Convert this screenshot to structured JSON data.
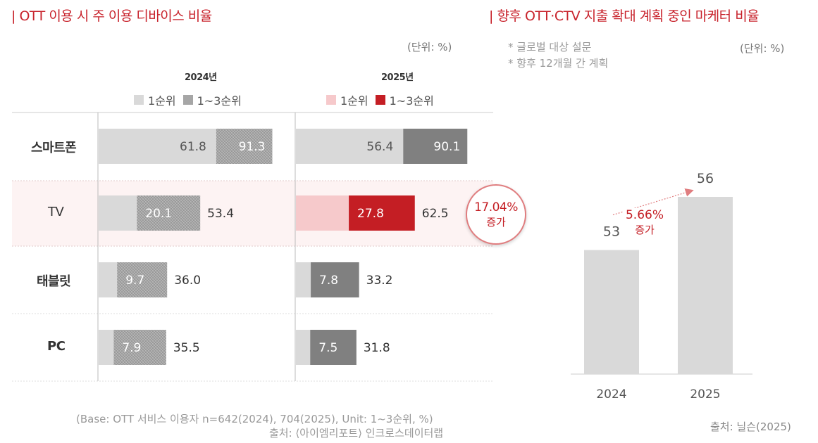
{
  "left_chart": {
    "title": "| OTT 이용 시 주 이용 디바이스 비율",
    "unit": "(단위: %)",
    "year_2024_label": "2024년",
    "year_2025_label": "2025년",
    "legend_2024": {
      "rank1": "1순위",
      "rank13": "1~3순위"
    },
    "legend_2025": {
      "rank1": "1순위",
      "rank13": "1~3순위"
    },
    "base_note": "(Base: OTT 서비스 이용자 n=642(2024), 704(2025), Unit: 1~3순위, %)",
    "source": "출처: ⟨아이엠리포트⟩ 인크로스데이터랩",
    "callout": {
      "value": "17.04%",
      "text": "증가"
    }
  },
  "right_chart": {
    "title": "| 향후 OTT·CTV 지출 확대 계획 중인 마케터 비율",
    "unit": "(단위: %)",
    "note1": "* 글로벌 대상 설문",
    "note2": "* 향후 12개월 간 계획",
    "annotation": {
      "value": "5.66%",
      "text": "증가"
    },
    "source": "출처: 닐슨(2025)"
  },
  "chart_data": [
    {
      "type": "bar",
      "orientation": "horizontal",
      "categories": [
        "스마트폰",
        "TV",
        "태블릿",
        "PC"
      ],
      "panels": [
        {
          "name": "2024년",
          "series": [
            {
              "name": "1순위",
              "values": [
                61.8,
                20.1,
                9.7,
                7.9
              ]
            },
            {
              "name": "1~3순위",
              "values": [
                91.3,
                53.4,
                36.0,
                35.5
              ]
            }
          ]
        },
        {
          "name": "2025년",
          "series": [
            {
              "name": "1순위",
              "values": [
                56.4,
                27.8,
                7.8,
                7.5
              ]
            },
            {
              "name": "1~3순위",
              "values": [
                90.1,
                62.5,
                33.2,
                31.8
              ]
            }
          ]
        }
      ],
      "highlight_category": "TV",
      "colors": {
        "rank1_2024": "#d9d9d9",
        "rank13_2024": "#a6a6a6",
        "rank1_2025": "#f6c9cb",
        "rank13_2025": "#808080",
        "highlight_2025": "#c41e24",
        "highlight_row": "#fdf3f3"
      }
    },
    {
      "type": "bar",
      "categories": [
        "2024",
        "2025"
      ],
      "values": [
        53,
        56
      ],
      "ylim": [
        0,
        65
      ],
      "colors": {
        "bar": "#d9d9d9",
        "arrow": "#e07d7f"
      }
    }
  ]
}
